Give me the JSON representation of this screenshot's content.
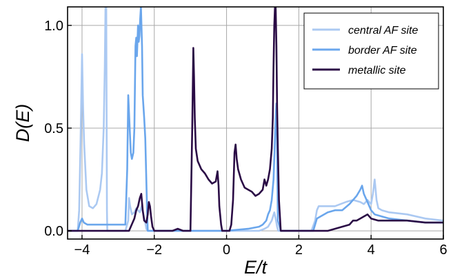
{
  "chart_data": {
    "type": "line",
    "title": "",
    "xlabel": "E/t",
    "ylabel": "D(E)",
    "xlim": [
      -4.4,
      6.0
    ],
    "ylim": [
      -0.04,
      1.09
    ],
    "xticks": [
      -4,
      -2,
      0,
      2,
      4,
      6
    ],
    "xtick_labels": [
      "−4",
      "−2",
      "0",
      "2",
      "4",
      "6"
    ],
    "yticks": [
      0.0,
      0.5,
      1.0
    ],
    "ytick_labels": [
      "0.0",
      "0.5",
      "1.0"
    ],
    "grid": true,
    "legend_position": "top-right",
    "series": [
      {
        "name": "central AF site",
        "color": "#abc9f2",
        "x": [
          -4.4,
          -4.12,
          -4.08,
          -4.04,
          -4.0,
          -3.97,
          -3.94,
          -3.88,
          -3.8,
          -3.7,
          -3.6,
          -3.5,
          -3.45,
          -3.4,
          -3.37,
          -3.35,
          -3.33,
          -3.31,
          -3.3,
          -2.8,
          -2.72,
          -2.7,
          -2.67,
          -2.62,
          -2.55,
          -2.5,
          -2.45,
          -2.4,
          -2.35,
          -2.3,
          -2.25,
          -2.22,
          -2.18,
          -2.1,
          -2.0,
          -1.0,
          -0.5,
          0.0,
          0.5,
          0.9,
          1.05,
          1.15,
          1.25,
          1.32,
          1.36,
          1.4,
          1.43,
          1.5,
          2.0,
          2.35,
          2.45,
          2.5,
          2.55,
          2.7,
          3.0,
          3.3,
          3.5,
          3.7,
          3.8,
          3.9,
          4.0,
          4.05,
          4.1,
          4.15,
          4.2,
          4.3,
          4.5,
          5.0,
          5.5,
          6.0
        ],
        "y": [
          0.0,
          0.0,
          0.1,
          0.45,
          0.86,
          0.6,
          0.42,
          0.2,
          0.12,
          0.11,
          0.13,
          0.2,
          0.28,
          0.5,
          0.8,
          1.09,
          1.09,
          0.1,
          0.0,
          0.0,
          0.05,
          0.16,
          0.12,
          0.08,
          0.09,
          0.11,
          0.1,
          0.09,
          0.12,
          0.08,
          0.04,
          0.01,
          0.0,
          0.0,
          0.0,
          0.0,
          0.0,
          0.0,
          0.0,
          0.0,
          0.01,
          0.02,
          0.05,
          0.09,
          0.06,
          0.02,
          0.0,
          0.0,
          0.0,
          0.0,
          0.05,
          0.1,
          0.12,
          0.12,
          0.12,
          0.14,
          0.15,
          0.14,
          0.13,
          0.15,
          0.13,
          0.18,
          0.25,
          0.15,
          0.11,
          0.1,
          0.09,
          0.08,
          0.06,
          0.05
        ]
      },
      {
        "name": "border AF site",
        "color": "#6aa6ec",
        "x": [
          -4.4,
          -4.12,
          -4.05,
          -4.0,
          -3.95,
          -3.85,
          -3.5,
          -3.35,
          -2.8,
          -2.75,
          -2.72,
          -2.68,
          -2.65,
          -2.62,
          -2.58,
          -2.55,
          -2.52,
          -2.5,
          -2.48,
          -2.45,
          -2.43,
          -2.41,
          -2.39,
          -2.37,
          -2.34,
          -2.32,
          -2.28,
          -2.25,
          -2.22,
          -2.2,
          -2.18,
          -2.12,
          -2.0,
          -1.0,
          0.0,
          0.6,
          0.9,
          1.0,
          1.1,
          1.15,
          1.2,
          1.25,
          1.3,
          1.33,
          1.36,
          1.38,
          1.4,
          1.42,
          1.5,
          2.0,
          2.4,
          2.45,
          2.5,
          2.6,
          2.8,
          3.0,
          3.2,
          3.4,
          3.5,
          3.6,
          3.7,
          3.75,
          3.8,
          3.9,
          4.0,
          4.1,
          4.3,
          4.5,
          5.0,
          5.5,
          6.0
        ],
        "y": [
          0.0,
          0.0,
          0.04,
          0.06,
          0.04,
          0.03,
          0.03,
          0.03,
          0.03,
          0.3,
          0.66,
          0.5,
          0.38,
          0.35,
          0.38,
          0.5,
          0.9,
          0.94,
          0.85,
          1.0,
          0.92,
          0.95,
          1.03,
          1.09,
          0.9,
          0.66,
          0.55,
          0.45,
          0.25,
          0.1,
          0.0,
          0.0,
          0.0,
          0.0,
          0.0,
          0.01,
          0.02,
          0.03,
          0.05,
          0.08,
          0.1,
          0.15,
          0.25,
          0.4,
          0.55,
          0.62,
          0.4,
          0.05,
          0.0,
          0.0,
          0.0,
          0.03,
          0.06,
          0.07,
          0.09,
          0.1,
          0.1,
          0.13,
          0.15,
          0.17,
          0.2,
          0.22,
          0.18,
          0.14,
          0.1,
          0.08,
          0.07,
          0.06,
          0.05,
          0.04,
          0.04
        ]
      },
      {
        "name": "metallic site",
        "color": "#2a0b45",
        "x": [
          -4.4,
          -2.8,
          -2.7,
          -2.65,
          -2.6,
          -2.55,
          -2.5,
          -2.45,
          -2.4,
          -2.36,
          -2.32,
          -2.28,
          -2.22,
          -2.18,
          -2.15,
          -2.12,
          -2.09,
          -2.05,
          -2.0,
          -1.5,
          -1.35,
          -1.2,
          -1.0,
          -0.95,
          -0.92,
          -0.9,
          -0.88,
          -0.85,
          -0.8,
          -0.7,
          -0.6,
          -0.5,
          -0.4,
          -0.3,
          -0.25,
          -0.22,
          -0.2,
          -0.15,
          -0.12,
          -0.08,
          0.0,
          0.08,
          0.13,
          0.18,
          0.22,
          0.25,
          0.28,
          0.32,
          0.4,
          0.5,
          0.6,
          0.7,
          0.8,
          0.9,
          1.0,
          1.05,
          1.1,
          1.15,
          1.2,
          1.25,
          1.28,
          1.3,
          1.32,
          1.34,
          1.36,
          1.38,
          1.4,
          1.42,
          1.45,
          1.5,
          2.0,
          2.5,
          2.8,
          3.0,
          3.2,
          3.4,
          3.5,
          3.6,
          3.7,
          3.8,
          3.9,
          4.0,
          4.2,
          4.5,
          5.0,
          5.5,
          6.0
        ],
        "y": [
          0.0,
          0.0,
          0.0,
          0.02,
          0.04,
          0.06,
          0.1,
          0.12,
          0.16,
          0.18,
          0.1,
          0.05,
          0.04,
          0.08,
          0.14,
          0.12,
          0.07,
          0.02,
          0.0,
          0.0,
          0.01,
          0.0,
          0.0,
          0.5,
          0.89,
          0.75,
          0.55,
          0.4,
          0.34,
          0.3,
          0.28,
          0.25,
          0.23,
          0.24,
          0.29,
          0.22,
          0.12,
          0.03,
          0.0,
          0.0,
          0.0,
          0.0,
          0.03,
          0.15,
          0.38,
          0.42,
          0.35,
          0.3,
          0.25,
          0.21,
          0.2,
          0.19,
          0.17,
          0.18,
          0.2,
          0.25,
          0.22,
          0.25,
          0.3,
          0.4,
          0.55,
          0.8,
          1.0,
          1.09,
          1.09,
          0.9,
          0.6,
          0.4,
          0.15,
          0.0,
          0.0,
          0.0,
          0.0,
          0.01,
          0.02,
          0.03,
          0.05,
          0.05,
          0.06,
          0.07,
          0.08,
          0.06,
          0.05,
          0.05,
          0.05,
          0.04,
          0.04
        ]
      }
    ]
  }
}
